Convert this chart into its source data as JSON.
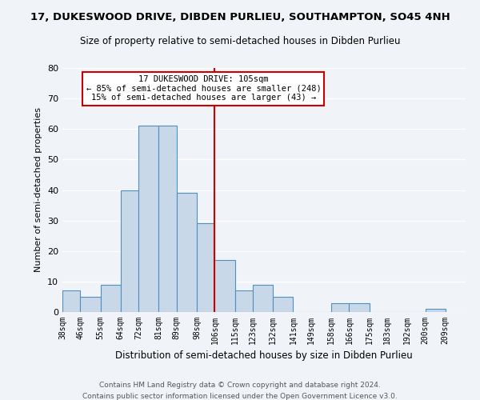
{
  "title": "17, DUKESWOOD DRIVE, DIBDEN PURLIEU, SOUTHAMPTON, SO45 4NH",
  "subtitle": "Size of property relative to semi-detached houses in Dibden Purlieu",
  "xlabel": "Distribution of semi-detached houses by size in Dibden Purlieu",
  "ylabel": "Number of semi-detached properties",
  "bin_labels": [
    "38sqm",
    "46sqm",
    "55sqm",
    "64sqm",
    "72sqm",
    "81sqm",
    "89sqm",
    "98sqm",
    "106sqm",
    "115sqm",
    "123sqm",
    "132sqm",
    "141sqm",
    "149sqm",
    "158sqm",
    "166sqm",
    "175sqm",
    "183sqm",
    "192sqm",
    "200sqm",
    "209sqm"
  ],
  "bin_edges": [
    38,
    46,
    55,
    64,
    72,
    81,
    89,
    98,
    106,
    115,
    123,
    132,
    141,
    149,
    158,
    166,
    175,
    183,
    192,
    200,
    209
  ],
  "bar_heights": [
    7,
    5,
    9,
    40,
    61,
    61,
    39,
    29,
    17,
    7,
    9,
    5,
    0,
    0,
    3,
    3,
    0,
    0,
    0,
    1
  ],
  "bar_color": "#c8d8e8",
  "bar_edge_color": "#5090c0",
  "property_line_x": 106,
  "property_line_color": "#cc0000",
  "annotation_title": "17 DUKESWOOD DRIVE: 105sqm",
  "annotation_line1": "← 85% of semi-detached houses are smaller (248)",
  "annotation_line2": "15% of semi-detached houses are larger (43) →",
  "annotation_box_color": "#ffffff",
  "annotation_box_edge": "#cc0000",
  "ylim": [
    0,
    80
  ],
  "yticks": [
    0,
    10,
    20,
    30,
    40,
    50,
    60,
    70,
    80
  ],
  "footer1": "Contains HM Land Registry data © Crown copyright and database right 2024.",
  "footer2": "Contains public sector information licensed under the Open Government Licence v3.0.",
  "background_color": "#f0f4f8"
}
